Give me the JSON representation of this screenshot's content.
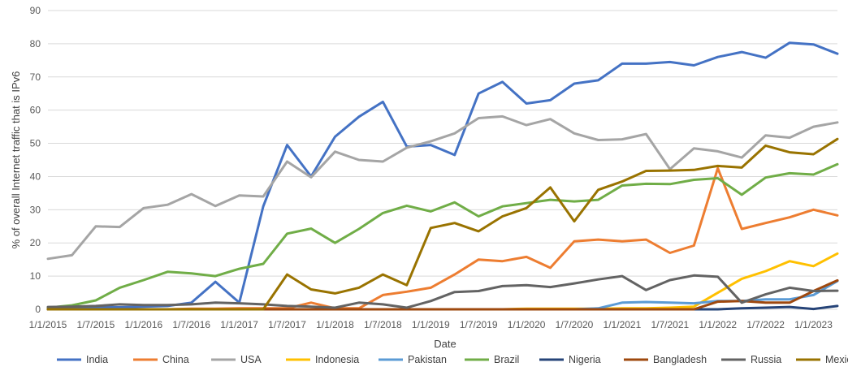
{
  "chart_data": {
    "type": "line",
    "title": "",
    "xlabel": "Date",
    "ylabel": "% of overall Internet traffic that is IPv6",
    "ylim": [
      0,
      90
    ],
    "yticks": [
      "0",
      "10",
      "20",
      "30",
      "40",
      "50",
      "60",
      "70",
      "80",
      "90"
    ],
    "grid": true,
    "legend_position": "bottom",
    "x": [
      "1/1/2015",
      "4/1/2015",
      "7/1/2015",
      "10/1/2015",
      "1/1/2016",
      "4/1/2016",
      "7/1/2016",
      "10/1/2016",
      "1/1/2017",
      "4/1/2017",
      "7/1/2017",
      "10/1/2017",
      "1/1/2018",
      "4/1/2018",
      "7/1/2018",
      "10/1/2018",
      "1/1/2019",
      "4/1/2019",
      "7/1/2019",
      "10/1/2019",
      "1/1/2020",
      "4/1/2020",
      "7/1/2020",
      "10/1/2020",
      "1/1/2021",
      "4/1/2021",
      "7/1/2021",
      "10/1/2021",
      "1/1/2022",
      "4/1/2022",
      "7/1/2022",
      "10/1/2022",
      "1/1/2023",
      "4/1/2023"
    ],
    "x_tick_labels": [
      "1/1/2015",
      "1/7/2015",
      "1/1/2016",
      "1/7/2016",
      "1/1/2017",
      "1/7/2017",
      "1/1/2018",
      "1/7/2018",
      "1/1/2019",
      "1/7/2019",
      "1/1/2020",
      "1/7/2020",
      "1/1/2021",
      "1/7/2021",
      "1/1/2022",
      "1/7/2022",
      "1/1/2023"
    ],
    "series": [
      {
        "name": "India",
        "color": "#4472c4",
        "values": [
          0.3,
          0.4,
          0.6,
          0.6,
          0.8,
          1,
          2,
          8.3,
          2,
          31,
          49.5,
          40,
          52,
          58,
          62.5,
          49,
          49.5,
          46.5,
          65,
          68.5,
          62,
          63,
          68,
          69,
          74,
          74,
          74.5,
          73.5,
          76,
          77.5,
          75.8,
          80.3,
          79.8,
          77
        ]
      },
      {
        "name": "China",
        "color": "#ed7d31",
        "values": [
          0,
          0,
          0,
          0,
          0,
          0,
          0.2,
          0.2,
          0.3,
          0.3,
          0.3,
          2,
          0.3,
          0.3,
          4.3,
          5.3,
          6.5,
          10.5,
          15,
          14.5,
          15.8,
          12.5,
          20.5,
          21,
          20.5,
          21,
          17,
          19.2,
          42.5,
          24.2,
          26,
          27.7,
          30,
          28.3
        ]
      },
      {
        "name": "USA",
        "color": "#a5a5a5",
        "values": [
          15.2,
          16.3,
          25,
          24.8,
          30.5,
          31.5,
          34.7,
          31.1,
          34.3,
          34,
          44.5,
          39.8,
          47.5,
          45,
          44.5,
          48.7,
          50.6,
          53,
          57.6,
          58.1,
          55.5,
          57.3,
          53,
          51,
          51.2,
          52.8,
          42.2,
          48.5,
          47.6,
          45.7,
          52.4,
          51.7,
          55,
          56.3
        ]
      },
      {
        "name": "Indonesia",
        "color": "#ffc000",
        "values": [
          0,
          0,
          0,
          0,
          0,
          0,
          0,
          0,
          0,
          0,
          0,
          0,
          0,
          0,
          0,
          0,
          0,
          0,
          0,
          0,
          0.2,
          0.2,
          0.2,
          0.2,
          0.3,
          0.3,
          0.5,
          0.8,
          5,
          9.2,
          11.5,
          14.5,
          13,
          16.8
        ]
      },
      {
        "name": "Pakistan",
        "color": "#5b9bd5",
        "values": [
          0,
          0,
          0,
          0,
          0,
          0,
          0,
          0,
          0,
          0,
          0,
          0,
          0,
          0,
          0,
          0,
          0,
          0,
          0,
          0,
          0,
          0,
          0,
          0.3,
          2,
          2.2,
          2,
          1.8,
          2.5,
          2.5,
          3,
          3,
          4.3,
          8.5
        ]
      },
      {
        "name": "Brazil",
        "color": "#70ad47",
        "values": [
          0.5,
          1.2,
          2.7,
          6.5,
          8.8,
          11.3,
          10.8,
          10,
          12.2,
          13.7,
          22.8,
          24.3,
          20,
          24.2,
          29,
          31.2,
          29.5,
          32.2,
          28,
          31,
          32,
          33,
          32.5,
          33,
          37.3,
          37.8,
          37.7,
          39,
          39.5,
          34.5,
          39.7,
          41,
          40.6,
          43.7
        ]
      },
      {
        "name": "Nigeria",
        "color": "#264478",
        "values": [
          0,
          0,
          0,
          0,
          0,
          0,
          0,
          0,
          0,
          0,
          0,
          0,
          0,
          0,
          0,
          0,
          0,
          0,
          0,
          0,
          0,
          0,
          0,
          0,
          0,
          0,
          0,
          0,
          0,
          0.3,
          0.5,
          0.7,
          0.1,
          1
        ]
      },
      {
        "name": "Bangladesh",
        "color": "#9e480e",
        "values": [
          0,
          0,
          0,
          0,
          0,
          0,
          0,
          0,
          0,
          0,
          0,
          0,
          0,
          0,
          0,
          0,
          0,
          0,
          0,
          0,
          0,
          0,
          0,
          0,
          0,
          0,
          0,
          0,
          2.3,
          2.5,
          2,
          2,
          5.5,
          8.7
        ]
      },
      {
        "name": "Russia",
        "color": "#636363",
        "values": [
          0.7,
          0.8,
          1,
          1.5,
          1.3,
          1.3,
          1.5,
          2,
          1.8,
          1.5,
          1,
          0.8,
          0.5,
          2,
          1.5,
          0.5,
          2.5,
          5.2,
          5.5,
          7,
          7.3,
          6.7,
          7.8,
          9,
          10,
          5.8,
          8.8,
          10.2,
          9.8,
          2,
          4.5,
          6.5,
          5.5,
          5.6
        ]
      },
      {
        "name": "Mexico",
        "color": "#997300",
        "values": [
          0,
          0,
          0,
          0,
          0,
          0,
          0,
          0,
          0,
          0,
          10.5,
          6,
          4.8,
          6.5,
          10.5,
          7.3,
          24.5,
          26,
          23.5,
          28,
          30.5,
          36.7,
          26.5,
          36,
          38.5,
          41.7,
          41.8,
          42,
          43.2,
          42.7,
          49.3,
          47.3,
          46.7,
          51.3
        ]
      }
    ]
  }
}
